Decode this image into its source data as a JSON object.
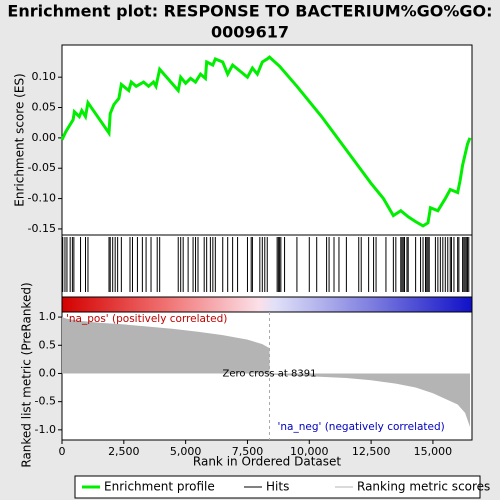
{
  "chart_data": [
    {
      "type": "line",
      "title": [
        "Enrichment plot: RESPONSE TO BACTERIUM%GO%GO:",
        "0009617"
      ],
      "ylabel": "Enrichment score (ES)",
      "xlim": [
        0,
        16580
      ],
      "x": [
        0,
        150,
        300,
        450,
        500,
        700,
        800,
        950,
        1050,
        1900,
        1950,
        2100,
        2300,
        2400,
        2700,
        2800,
        3000,
        3300,
        3500,
        3700,
        3800,
        3950,
        4700,
        4800,
        5000,
        5200,
        5400,
        5600,
        5800,
        5850,
        6100,
        6200,
        6500,
        6700,
        6900,
        7200,
        7500,
        7700,
        7900,
        8100,
        8300,
        8391,
        8800,
        9500,
        10500,
        11500,
        12500,
        13000,
        13400,
        13700,
        14000,
        14300,
        14600,
        14800,
        14900,
        15200,
        15500,
        15700,
        16000,
        16100,
        16200,
        16400,
        16500
      ],
      "series": [
        {
          "name": "Enrichment profile",
          "color": "#00ee00",
          "values": [
            -0.003,
            0.01,
            0.02,
            0.03,
            0.043,
            0.035,
            0.045,
            0.035,
            0.058,
            0.008,
            0.04,
            0.055,
            0.065,
            0.088,
            0.078,
            0.092,
            0.085,
            0.092,
            0.085,
            0.092,
            0.085,
            0.113,
            0.078,
            0.1,
            0.09,
            0.098,
            0.092,
            0.105,
            0.098,
            0.125,
            0.12,
            0.13,
            0.125,
            0.105,
            0.12,
            0.11,
            0.1,
            0.115,
            0.105,
            0.125,
            0.13,
            0.133,
            0.118,
            0.085,
            0.035,
            -0.02,
            -0.075,
            -0.1,
            -0.128,
            -0.12,
            -0.13,
            -0.138,
            -0.145,
            -0.14,
            -0.115,
            -0.12,
            -0.1,
            -0.085,
            -0.09,
            -0.07,
            -0.045,
            -0.01,
            0.0
          ]
        }
      ],
      "ylim": [
        -0.16,
        0.153
      ],
      "yticks": [
        {
          "value": 0.1,
          "label": "0.10"
        },
        {
          "value": 0.05,
          "label": "0.05"
        },
        {
          "value": 0,
          "label": "0.00"
        },
        {
          "value": -0.05,
          "label": "-0.05"
        },
        {
          "value": -0.1,
          "label": "-0.10"
        },
        {
          "value": -0.15,
          "label": "-0.15"
        }
      ]
    },
    {
      "type": "rug",
      "xlim": [
        0,
        16580
      ],
      "series": [
        {
          "name": "Hits",
          "color": "#000000",
          "x": [
            30,
            120,
            200,
            330,
            420,
            480,
            750,
            950,
            1050,
            1900,
            1950,
            2050,
            2150,
            2250,
            2400,
            2750,
            2850,
            3050,
            3250,
            3400,
            3600,
            3850,
            3950,
            4700,
            4800,
            4900,
            5100,
            5300,
            5400,
            5500,
            5750,
            5850,
            6000,
            6100,
            6200,
            6500,
            6700,
            6900,
            7100,
            7500,
            7650,
            7700,
            8000,
            8100,
            8200,
            8300,
            8700,
            8750,
            8800,
            8850,
            9000,
            9500,
            10000,
            10300,
            10700,
            10800,
            11000,
            11200,
            11500,
            12000,
            12100,
            12400,
            12600,
            12700,
            13100,
            13400,
            13500,
            13700,
            13750,
            13800,
            13850,
            13950,
            14000,
            14300,
            14500,
            14600,
            14700,
            14750,
            14800,
            14850,
            15100,
            15200,
            15300,
            15400,
            15500,
            15600,
            15700,
            15750,
            15850,
            16000,
            16050,
            16200,
            16250,
            16300,
            16350,
            16400,
            16450
          ]
        }
      ]
    },
    {
      "type": "area",
      "ylabel": "Ranked list metric (PreRanked)",
      "xlabel": "Rank in Ordered Dataset",
      "xlim": [
        0,
        16580
      ],
      "x": [
        0,
        200,
        800,
        1500,
        2500,
        3500,
        4500,
        5500,
        6500,
        7500,
        8100,
        8390,
        8391,
        8392,
        10000,
        11500,
        12500,
        13500,
        14300,
        15000,
        15500,
        16000,
        16300,
        16500
      ],
      "series": [
        {
          "name": "Ranking metric scores",
          "color": "#b4b4b4",
          "values": [
            1.0,
            0.97,
            0.93,
            0.9,
            0.87,
            0.83,
            0.79,
            0.74,
            0.68,
            0.6,
            0.52,
            0.45,
            0,
            -0.02,
            -0.05,
            -0.08,
            -0.12,
            -0.18,
            -0.25,
            -0.35,
            -0.45,
            -0.55,
            -0.7,
            -0.95
          ]
        }
      ],
      "ylim": [
        -1.18,
        1.09
      ],
      "yticks": [
        {
          "value": 1,
          "label": "1.0"
        },
        {
          "value": 0.5,
          "label": "0.5"
        },
        {
          "value": 0,
          "label": "0.0"
        },
        {
          "value": -0.5,
          "label": "-0.5"
        },
        {
          "value": -1,
          "label": "-1.0"
        }
      ],
      "xticks": [
        0,
        {
          "value": 2500,
          "label": "2,500"
        },
        {
          "value": 5000,
          "label": "5,000"
        },
        {
          "value": 7500,
          "label": "7,500"
        },
        {
          "value": 10000,
          "label": "10,000"
        },
        {
          "value": 12500,
          "label": "12,500"
        },
        {
          "value": 15000,
          "label": "15,000"
        }
      ],
      "zero_cross": 8391,
      "annotations": [
        "'na_pos' (positively correlated)",
        "Zero cross at 8391",
        "'na_neg' (negatively correlated)"
      ]
    }
  ]
}
